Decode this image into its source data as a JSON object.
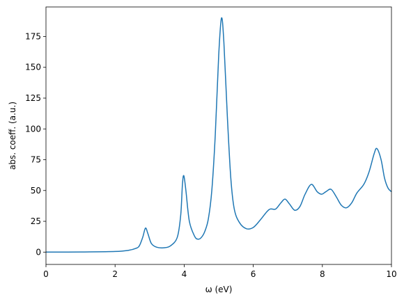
{
  "chart_data": {
    "type": "line",
    "xlabel": "ω (eV)",
    "ylabel": "abs. coeff. (a.u.)",
    "x": [
      0,
      1,
      2,
      2.4,
      2.6,
      2.7,
      2.8,
      2.88,
      2.95,
      3.05,
      3.2,
      3.4,
      3.6,
      3.8,
      3.9,
      3.95,
      3.99,
      4.05,
      4.15,
      4.3,
      4.4,
      4.5,
      4.6,
      4.7,
      4.8,
      4.9,
      5.0,
      5.08,
      5.15,
      5.25,
      5.35,
      5.45,
      5.6,
      5.8,
      6.0,
      6.2,
      6.4,
      6.5,
      6.65,
      6.8,
      6.92,
      7.05,
      7.2,
      7.35,
      7.5,
      7.68,
      7.85,
      7.98,
      8.1,
      8.25,
      8.4,
      8.55,
      8.7,
      8.85,
      9.0,
      9.2,
      9.35,
      9.5,
      9.58,
      9.7,
      9.8,
      9.9,
      10
    ],
    "series": [
      {
        "color": "#1f77b4",
        "values": [
          0,
          0.1,
          0.5,
          1.5,
          3,
          5,
          12,
          19.5,
          15,
          7,
          4,
          3.5,
          5,
          12,
          30,
          55,
          62,
          50,
          25,
          13,
          10.5,
          12,
          17,
          27,
          50,
          95,
          160,
          190,
          170,
          110,
          60,
          35,
          24,
          19,
          20,
          26,
          33,
          35,
          35,
          40,
          43,
          39,
          34,
          37,
          47,
          55,
          49,
          47,
          49,
          51,
          45,
          38,
          36,
          40,
          48,
          55,
          65,
          80,
          84,
          75,
          60,
          52,
          49
        ]
      }
    ],
    "xlim": [
      0,
      10
    ],
    "xticks": [
      0,
      2,
      4,
      6,
      8,
      10
    ],
    "ylim": [
      -10,
      199
    ],
    "yticks": [
      0,
      25,
      50,
      75,
      100,
      125,
      150,
      175
    ]
  }
}
